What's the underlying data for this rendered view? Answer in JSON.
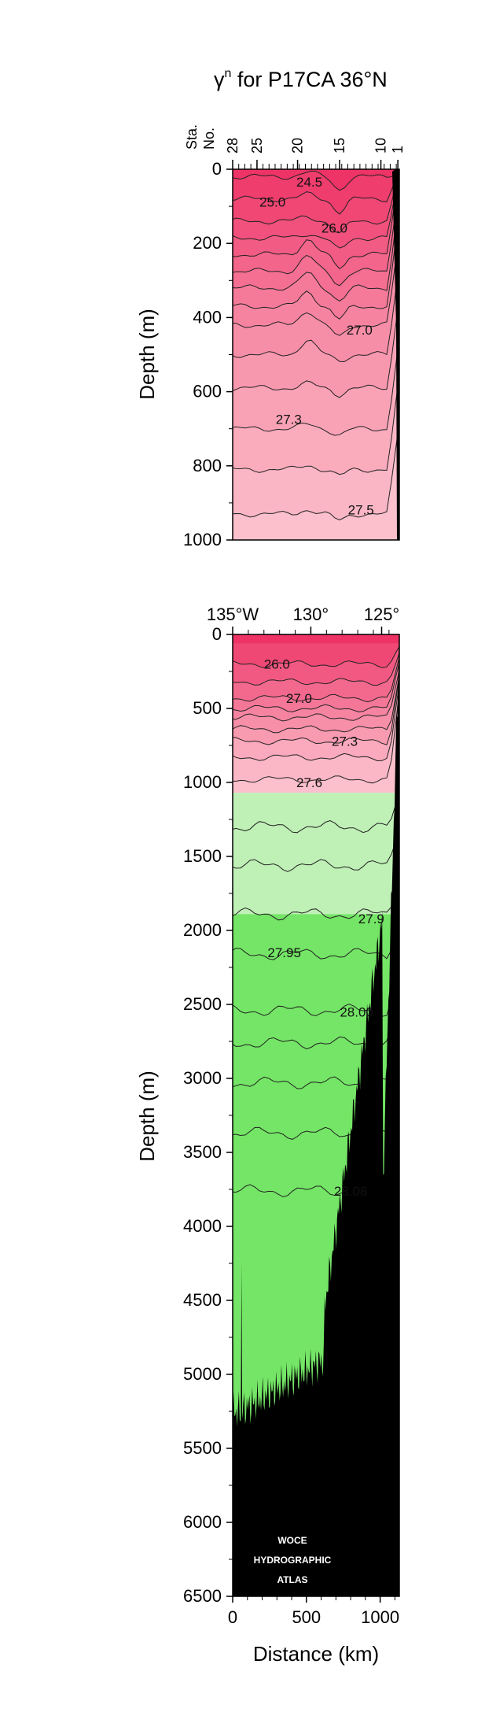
{
  "title_parts": {
    "gamma": "γ",
    "sup": "n",
    "rest": " for P17CA 36°N"
  },
  "chart_data": [
    {
      "type": "heatmap",
      "panel": "upper",
      "ylabel": "Depth (m)",
      "ylim": [
        0,
        1000
      ],
      "yticks": [
        "0",
        "200",
        "400",
        "600",
        "800",
        "1000"
      ],
      "xlim_km": [
        0,
        1130
      ],
      "station_axis_title": [
        "Sta.",
        "No."
      ],
      "stations": [
        {
          "label": "28",
          "km": 0
        },
        {
          "label": "25",
          "km": 165
        },
        {
          "label": "20",
          "km": 440
        },
        {
          "label": "15",
          "km": 725
        },
        {
          "label": "10",
          "km": 1005
        },
        {
          "label": "1",
          "km": 1120
        }
      ],
      "contour_levels": [
        24.5,
        25.0,
        25.5,
        26.0,
        26.2,
        26.4,
        26.6,
        26.8,
        27.0,
        27.1,
        27.2,
        27.3,
        27.4,
        27.5
      ],
      "contour_labels": [
        {
          "text": "24.5",
          "km": 520,
          "depth": 40
        },
        {
          "text": "25.0",
          "km": 270,
          "depth": 95
        },
        {
          "text": "26.0",
          "km": 690,
          "depth": 165
        },
        {
          "text": "27.0",
          "km": 860,
          "depth": 440
        },
        {
          "text": "27.3",
          "km": 380,
          "depth": 680
        },
        {
          "text": "27.5",
          "km": 870,
          "depth": 925
        }
      ],
      "colors": {
        "lightest": "#fcc0cc",
        "darkest": "#ee3366"
      }
    },
    {
      "type": "heatmap",
      "panel": "lower",
      "ylabel": "Depth (m)",
      "xlabel": "Distance (km)",
      "ylim": [
        0,
        6500
      ],
      "yticks": [
        "0",
        "500",
        "1000",
        "1500",
        "2000",
        "2500",
        "3000",
        "3500",
        "4000",
        "4500",
        "5000",
        "5500",
        "6000",
        "6500"
      ],
      "xlim_km": [
        0,
        1130
      ],
      "xticks": [
        "0",
        "500",
        "1000"
      ],
      "longitude_ticks": [
        {
          "label": "135°W",
          "km": 0
        },
        {
          "label": "130°",
          "km": 530
        },
        {
          "label": "125°",
          "km": 1010
        }
      ],
      "contour_levels": [
        26.0,
        26.5,
        27.0,
        27.1,
        27.2,
        27.3,
        27.4,
        27.5,
        27.6,
        27.7,
        27.8,
        27.9,
        27.95,
        28.0,
        28.02,
        28.04,
        28.06,
        28.08
      ],
      "contour_labels": [
        {
          "text": "26.0",
          "km": 300,
          "depth": 200
        },
        {
          "text": "27.0",
          "km": 450,
          "depth": 430
        },
        {
          "text": "27.3",
          "km": 760,
          "depth": 720
        },
        {
          "text": "27.6",
          "km": 520,
          "depth": 1000
        },
        {
          "text": "27.9",
          "km": 940,
          "depth": 1920
        },
        {
          "text": "27.95",
          "km": 350,
          "depth": 2150
        },
        {
          "text": "28.00",
          "km": 840,
          "depth": 2550
        },
        {
          "text": "28.08",
          "km": 800,
          "depth": 3760
        }
      ],
      "colors": {
        "pink": "#fcc0cc",
        "lightgreen": "#bff0b6",
        "green": "#74e566",
        "bathymetry": "#000000"
      },
      "watermark": [
        "WOCE",
        "HYDROGRAPHIC",
        "ATLAS"
      ]
    }
  ]
}
